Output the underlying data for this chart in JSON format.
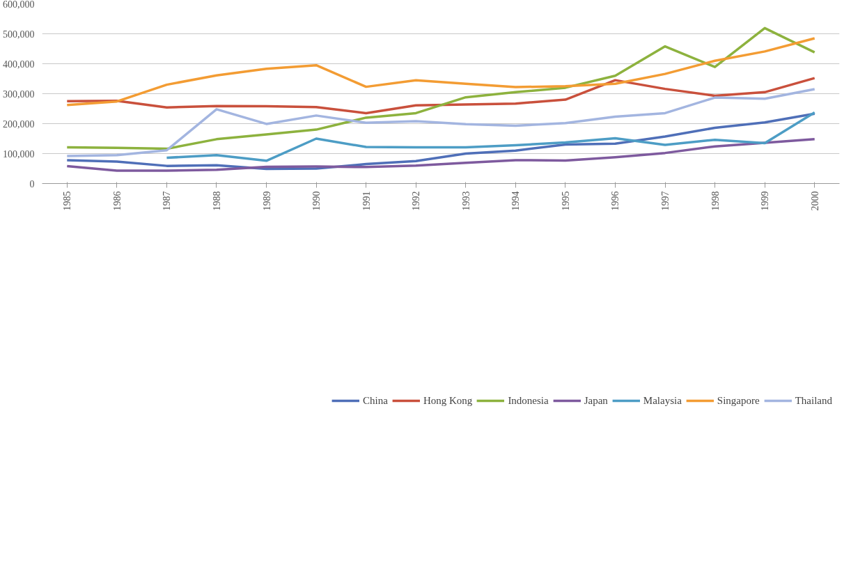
{
  "chart_data": {
    "type": "line",
    "categories": [
      "1985",
      "1986",
      "1987",
      "1988",
      "1989",
      "1990",
      "1991",
      "1992",
      "1993",
      "1994",
      "1995",
      "1996",
      "1997",
      "1998",
      "1999",
      "2000"
    ],
    "series": [
      {
        "name": "China",
        "color": "#4f6fb8",
        "values": [
          78000,
          73000,
          59000,
          61000,
          49000,
          50000,
          65000,
          75000,
          100000,
          110000,
          130000,
          133000,
          157000,
          186000,
          204000,
          233000
        ]
      },
      {
        "name": "Hong Kong",
        "color": "#c9503c",
        "values": [
          275000,
          276000,
          254000,
          259000,
          258000,
          255000,
          235000,
          261000,
          264000,
          267000,
          280000,
          345000,
          316000,
          293000,
          305000,
          352000
        ]
      },
      {
        "name": "Indonesia",
        "color": "#8db23e",
        "values": [
          121000,
          119000,
          116000,
          148000,
          164000,
          180000,
          220000,
          235000,
          288000,
          305000,
          320000,
          360000,
          458000,
          389000,
          519000,
          438000
        ]
      },
      {
        "name": "Japan",
        "color": "#7e5a9e",
        "values": [
          58000,
          43000,
          43000,
          46000,
          56000,
          57000,
          55000,
          60000,
          69000,
          78000,
          77000,
          88000,
          102000,
          124000,
          136000,
          148000
        ]
      },
      {
        "name": "Malaysia",
        "color": "#4d9dc5",
        "values": [
          null,
          null,
          86000,
          95000,
          76000,
          150000,
          122000,
          121000,
          121000,
          128000,
          137000,
          151000,
          129000,
          146000,
          135000,
          237000
        ]
      },
      {
        "name": "Singapore",
        "color": "#f39c33",
        "values": [
          262000,
          274000,
          330000,
          361000,
          383000,
          395000,
          323000,
          345000,
          333000,
          322000,
          325000,
          333000,
          366000,
          410000,
          441000,
          485000
        ]
      },
      {
        "name": "Thailand",
        "color": "#a3b5e0",
        "values": [
          92000,
          95000,
          111000,
          248000,
          199000,
          227000,
          203000,
          208000,
          198000,
          193000,
          202000,
          223000,
          235000,
          287000,
          283000,
          315000
        ]
      }
    ],
    "ylim": [
      0,
      600000
    ],
    "yticks": [
      {
        "value": 0,
        "label": "0"
      },
      {
        "value": 100000,
        "label": "100,000"
      },
      {
        "value": 200000,
        "label": "200,000"
      },
      {
        "value": 300000,
        "label": "300,000"
      },
      {
        "value": 400000,
        "label": "400,000"
      },
      {
        "value": 500000,
        "label": "500,000"
      },
      {
        "value": 600000,
        "label": "600,000"
      }
    ],
    "grid": "y",
    "legend": "bottom",
    "marker": "none",
    "line_style": "solid"
  }
}
